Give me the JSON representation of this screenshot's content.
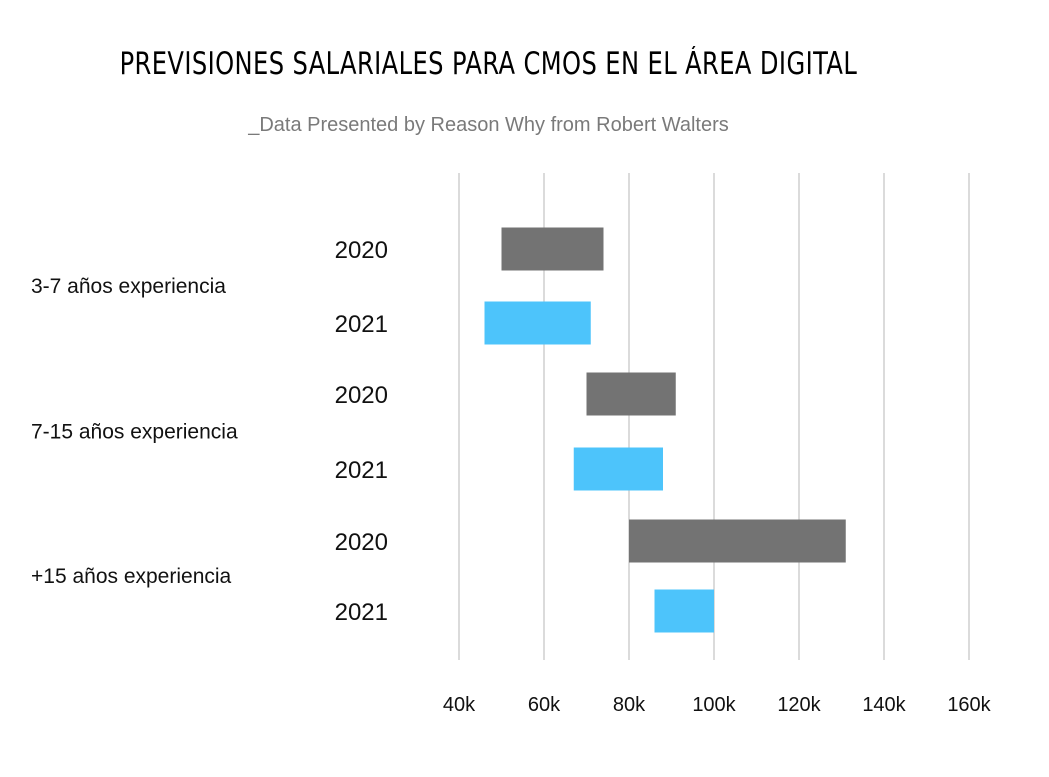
{
  "chart_data": {
    "type": "bar",
    "subtype": "floating-range-horizontal",
    "title": "PREVISIONES SALARIALES PARA CMOS EN EL ÁREA DIGITAL",
    "subtitle": "_Data Presented by Reason Why from Robert Walters",
    "xlim": [
      40000,
      160000
    ],
    "x_ticks": [
      40000,
      60000,
      80000,
      100000,
      120000,
      140000,
      160000
    ],
    "x_tick_labels": [
      "40k",
      "60k",
      "80k",
      "100k",
      "120k",
      "140k",
      "160k"
    ],
    "grid": "vertical",
    "colors": {
      "2020": "#737373",
      "2021": "#4dc4fb"
    },
    "groups": [
      {
        "label": "3-7 años experiencia",
        "bars": [
          {
            "year": "2020",
            "min": 50000,
            "max": 74000
          },
          {
            "year": "2021",
            "min": 46000,
            "max": 71000
          }
        ]
      },
      {
        "label": "7-15 años experiencia",
        "bars": [
          {
            "year": "2020",
            "min": 70000,
            "max": 91000
          },
          {
            "year": "2021",
            "min": 67000,
            "max": 88000
          }
        ]
      },
      {
        "label": "+15 años experiencia",
        "bars": [
          {
            "year": "2020",
            "min": 80000,
            "max": 131000
          },
          {
            "year": "2021",
            "min": 86000,
            "max": 100000
          }
        ]
      }
    ]
  }
}
